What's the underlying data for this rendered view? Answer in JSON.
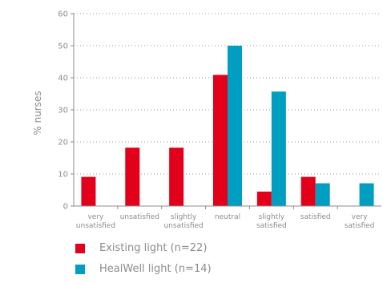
{
  "chart_data": {
    "type": "bar",
    "ylabel": "% nurses",
    "ylim": [
      0,
      60
    ],
    "yticks": [
      0,
      10,
      20,
      30,
      40,
      50,
      60
    ],
    "grid": true,
    "legend_position": "bottom-left",
    "categories": [
      [
        "very",
        "unsatisfied"
      ],
      [
        "unsatisfied"
      ],
      [
        "slightly",
        "unsatisfied"
      ],
      [
        "neutral"
      ],
      [
        "slightly",
        "satisfied"
      ],
      [
        "satisfied"
      ],
      [
        "very",
        "satisfied"
      ]
    ],
    "series": [
      {
        "name": "Existing light (n=22)",
        "color": "#e2001a",
        "values": [
          9.1,
          18.2,
          18.2,
          40.9,
          4.5,
          9.1,
          0
        ]
      },
      {
        "name": "HealWell light (n=14)",
        "color": "#009fc2",
        "values": [
          0,
          0,
          0,
          50.0,
          35.7,
          7.1,
          7.1
        ]
      }
    ]
  }
}
